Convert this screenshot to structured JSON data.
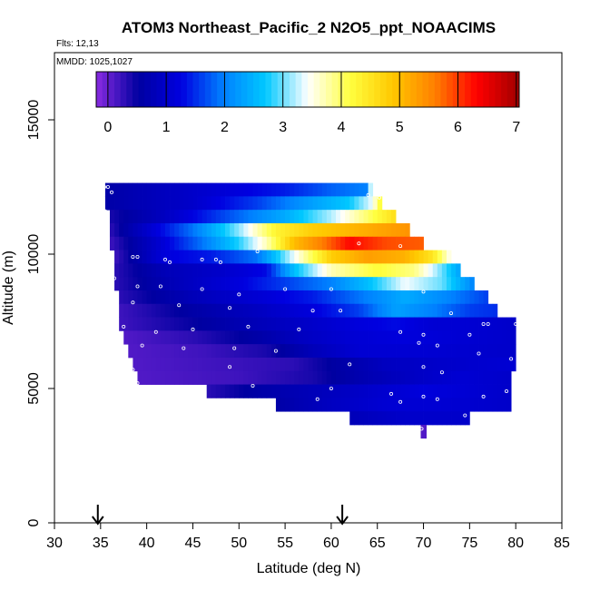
{
  "chart_data": {
    "type": "heatmap",
    "title": "ATOM3 Northeast_Pacific_2 N2O5_ppt_NOAACIMS",
    "annotations": [
      "Flts: 12,13",
      "MMDD: 1025,1027"
    ],
    "xlabel": "Latitude (deg N)",
    "ylabel": "Altitude (m)",
    "xlim": [
      30,
      85
    ],
    "ylim": [
      0,
      17500
    ],
    "xticks": [
      30,
      35,
      40,
      45,
      50,
      55,
      60,
      65,
      70,
      75,
      80,
      85
    ],
    "yticks": [
      0,
      5000,
      10000,
      15000
    ],
    "colorbar": {
      "range": [
        -0.2,
        7.05
      ],
      "ticks": [
        0,
        1,
        2,
        3,
        4,
        5,
        6,
        7
      ],
      "colors": [
        "#8a2be2",
        "#0000a0",
        "#0000e0",
        "#0080ff",
        "#00c8ff",
        "#ffffff",
        "#ffff40",
        "#ffc800",
        "#ff8000",
        "#ff0000",
        "#a00000"
      ]
    },
    "arrows_latitude": [
      34.7,
      61.2
    ],
    "layers": [
      {
        "alt": 12400,
        "lat": [
          35.5,
          64.5
        ],
        "v": [
          [
            35.5,
            0.6
          ],
          [
            45,
            1.0
          ],
          [
            55,
            1.4
          ],
          [
            60,
            1.8
          ],
          [
            64,
            2.0
          ],
          [
            64.5,
            4.5
          ]
        ]
      },
      {
        "alt": 11900,
        "lat": [
          35.5,
          65.5
        ],
        "v": [
          [
            35.5,
            0.6
          ],
          [
            45,
            1.0
          ],
          [
            52,
            1.6
          ],
          [
            58,
            2.3
          ],
          [
            62,
            2.7
          ],
          [
            64.5,
            3.4
          ],
          [
            65.5,
            4.4
          ]
        ]
      },
      {
        "alt": 11400,
        "lat": [
          36,
          67
        ],
        "v": [
          [
            36,
            0.4
          ],
          [
            42,
            0.9
          ],
          [
            48,
            1.6
          ],
          [
            55,
            2.4
          ],
          [
            60,
            3.2
          ],
          [
            64,
            4.0
          ],
          [
            67,
            4.6
          ]
        ]
      },
      {
        "alt": 10900,
        "lat": [
          36,
          68.5
        ],
        "v": [
          [
            36,
            0.3
          ],
          [
            40,
            1.0
          ],
          [
            45,
            1.9
          ],
          [
            50,
            3.1
          ],
          [
            54,
            4.3
          ],
          [
            58,
            4.8
          ],
          [
            63,
            5.1
          ],
          [
            68.5,
            5.4
          ]
        ]
      },
      {
        "alt": 10400,
        "lat": [
          36,
          70
        ],
        "v": [
          [
            36,
            0.2
          ],
          [
            41,
            1.0
          ],
          [
            46,
            1.9
          ],
          [
            50,
            2.8
          ],
          [
            53,
            3.7
          ],
          [
            56,
            5.0
          ],
          [
            59,
            5.6
          ],
          [
            62,
            6.3
          ],
          [
            66,
            5.9
          ],
          [
            70,
            5.8
          ]
        ]
      },
      {
        "alt": 9900,
        "lat": [
          36.5,
          73
        ],
        "v": [
          [
            36.5,
            0.2
          ],
          [
            42,
            1.2
          ],
          [
            47,
            1.4
          ],
          [
            52,
            1.9
          ],
          [
            56,
            3.4
          ],
          [
            60,
            4.8
          ],
          [
            64,
            5.3
          ],
          [
            68,
            5.1
          ],
          [
            71,
            4.5
          ],
          [
            73,
            3.4
          ]
        ]
      },
      {
        "alt": 9400,
        "lat": [
          36.5,
          74
        ],
        "v": [
          [
            36.5,
            0.3
          ],
          [
            42,
            0.8
          ],
          [
            48,
            1.0
          ],
          [
            53,
            1.3
          ],
          [
            56,
            2.6
          ],
          [
            60,
            3.7
          ],
          [
            65,
            4.2
          ],
          [
            69,
            3.9
          ],
          [
            72,
            3.0
          ],
          [
            74,
            2.3
          ]
        ]
      },
      {
        "alt": 8900,
        "lat": [
          36.5,
          75.5
        ],
        "v": [
          [
            36.5,
            0.3
          ],
          [
            43,
            0.8
          ],
          [
            50,
            1.2
          ],
          [
            55,
            1.6
          ],
          [
            60,
            2.0
          ],
          [
            64,
            2.6
          ],
          [
            68,
            3.4
          ],
          [
            72,
            3.0
          ],
          [
            75.5,
            2.0
          ]
        ]
      },
      {
        "alt": 8400,
        "lat": [
          37,
          77
        ],
        "v": [
          [
            37,
            0.3
          ],
          [
            45,
            0.8
          ],
          [
            52,
            1.1
          ],
          [
            58,
            1.4
          ],
          [
            63,
            1.9
          ],
          [
            68,
            2.4
          ],
          [
            72,
            2.1
          ],
          [
            77,
            1.6
          ]
        ]
      },
      {
        "alt": 7900,
        "lat": [
          37,
          78
        ],
        "v": [
          [
            37,
            0.2
          ],
          [
            45,
            0.6
          ],
          [
            52,
            0.9
          ],
          [
            58,
            1.2
          ],
          [
            63,
            1.6
          ],
          [
            67,
            2.3
          ],
          [
            71,
            2.0
          ],
          [
            75,
            1.6
          ],
          [
            78,
            1.5
          ]
        ]
      },
      {
        "alt": 7400,
        "lat": [
          37,
          80
        ],
        "v": [
          [
            37,
            0.2
          ],
          [
            45,
            0.5
          ],
          [
            52,
            0.8
          ],
          [
            58,
            1.0
          ],
          [
            63,
            1.2
          ],
          [
            67,
            1.3
          ],
          [
            71,
            1.1
          ],
          [
            75,
            1.1
          ],
          [
            80,
            1.0
          ]
        ]
      },
      {
        "alt": 6900,
        "lat": [
          37.5,
          80
        ],
        "v": [
          [
            37.5,
            0.1
          ],
          [
            45,
            0.3
          ],
          [
            52,
            0.6
          ],
          [
            57,
            0.9
          ],
          [
            62,
            1.1
          ],
          [
            68,
            1.2
          ],
          [
            74,
            1.1
          ],
          [
            80,
            1.0
          ]
        ]
      },
      {
        "alt": 6400,
        "lat": [
          38,
          80
        ],
        "v": [
          [
            38,
            0.1
          ],
          [
            46,
            0.2
          ],
          [
            53,
            0.4
          ],
          [
            58,
            0.8
          ],
          [
            63,
            1.1
          ],
          [
            70,
            1.1
          ],
          [
            80,
            1.0
          ]
        ]
      },
      {
        "alt": 5900,
        "lat": [
          38.5,
          80
        ],
        "v": [
          [
            38.5,
            0.1
          ],
          [
            48,
            0.2
          ],
          [
            56,
            0.3
          ],
          [
            61,
            0.6
          ],
          [
            66,
            0.9
          ],
          [
            72,
            1.0
          ],
          [
            80,
            1.1
          ]
        ]
      },
      {
        "alt": 5400,
        "lat": [
          39,
          79.5
        ],
        "v": [
          [
            39,
            0.1
          ],
          [
            50,
            0.2
          ],
          [
            58,
            0.4
          ],
          [
            63,
            0.7
          ],
          [
            68,
            0.9
          ],
          [
            74,
            1.1
          ],
          [
            79.5,
            1.0
          ]
        ]
      },
      {
        "alt": 4900,
        "lat": [
          46.5,
          79.5
        ],
        "v": [
          [
            46.5,
            0.3
          ],
          [
            52,
            0.6
          ],
          [
            58,
            0.8
          ],
          [
            64,
            1.0
          ],
          [
            70,
            1.2
          ],
          [
            75,
            1.1
          ],
          [
            79.5,
            1.0
          ]
        ]
      },
      {
        "alt": 4400,
        "lat": [
          54,
          79.5
        ],
        "v": [
          [
            54,
            0.6
          ],
          [
            60,
            0.9
          ],
          [
            66,
            1.1
          ],
          [
            72,
            1.1
          ],
          [
            79.5,
            1.0
          ]
        ]
      },
      {
        "alt": 3900,
        "lat": [
          62,
          75
        ],
        "v": [
          [
            62,
            0.8
          ],
          [
            68,
            1.0
          ],
          [
            75,
            1.0
          ]
        ]
      },
      {
        "alt": 3400,
        "lat": [
          69.7,
          70.3
        ],
        "v": [
          [
            69.7,
            0.1
          ],
          [
            70.3,
            0.1
          ]
        ]
      }
    ],
    "samples": [
      [
        35.4,
        12500
      ],
      [
        35.8,
        12500
      ],
      [
        36.2,
        12300
      ],
      [
        35.5,
        11600
      ],
      [
        64,
        12200
      ],
      [
        65.2,
        12100
      ],
      [
        38.5,
        9900
      ],
      [
        39,
        9900
      ],
      [
        42,
        9800
      ],
      [
        42.5,
        9700
      ],
      [
        46,
        9800
      ],
      [
        47.5,
        9800
      ],
      [
        48,
        9700
      ],
      [
        52,
        10100
      ],
      [
        63,
        10400
      ],
      [
        67.5,
        10300
      ],
      [
        72,
        10300
      ],
      [
        36.5,
        9100
      ],
      [
        39,
        8800
      ],
      [
        41.5,
        8800
      ],
      [
        46,
        8700
      ],
      [
        50,
        8500
      ],
      [
        55,
        8700
      ],
      [
        60,
        8700
      ],
      [
        70,
        8600
      ],
      [
        38.5,
        8200
      ],
      [
        43.5,
        8100
      ],
      [
        49,
        8000
      ],
      [
        58,
        7900
      ],
      [
        61,
        7900
      ],
      [
        73,
        7800
      ],
      [
        37.5,
        7300
      ],
      [
        41,
        7100
      ],
      [
        45,
        7200
      ],
      [
        51,
        7300
      ],
      [
        56.5,
        7200
      ],
      [
        67.5,
        7100
      ],
      [
        70,
        7000
      ],
      [
        75,
        7000
      ],
      [
        76.5,
        7400
      ],
      [
        77,
        7400
      ],
      [
        80,
        7400
      ],
      [
        39.5,
        6600
      ],
      [
        44,
        6500
      ],
      [
        49.5,
        6500
      ],
      [
        54,
        6400
      ],
      [
        69.5,
        6700
      ],
      [
        71.5,
        6600
      ],
      [
        76,
        6300
      ],
      [
        79.5,
        6100
      ],
      [
        38.5,
        5700
      ],
      [
        49,
        5800
      ],
      [
        62,
        5900
      ],
      [
        70,
        5800
      ],
      [
        72,
        5600
      ],
      [
        39,
        5200
      ],
      [
        51.5,
        5100
      ],
      [
        60,
        5000
      ],
      [
        66.5,
        4800
      ],
      [
        70,
        4700
      ],
      [
        71.5,
        4600
      ],
      [
        76.5,
        4700
      ],
      [
        79,
        4900
      ],
      [
        58.5,
        4600
      ],
      [
        67.5,
        4500
      ],
      [
        80,
        4300
      ],
      [
        74.5,
        4000
      ],
      [
        69.8,
        3500
      ]
    ]
  }
}
